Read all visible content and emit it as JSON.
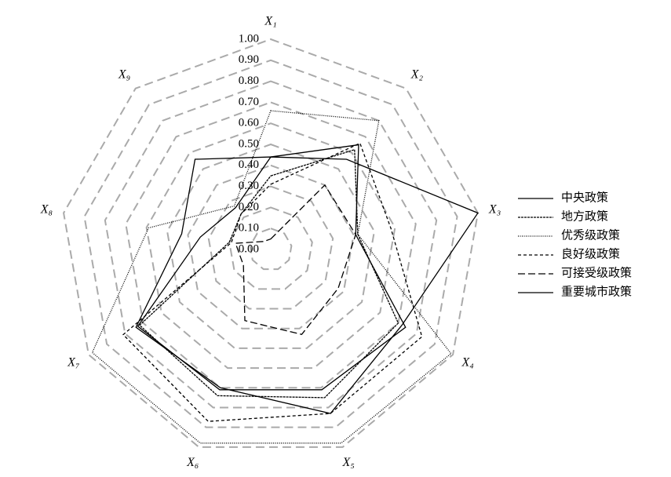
{
  "chart_data": {
    "type": "radar",
    "categories": [
      "X₁",
      "X₂",
      "X₃",
      "X₄",
      "X₅",
      "X₆",
      "X₇",
      "X₈",
      "X₉"
    ],
    "ylim": [
      0,
      1
    ],
    "yticks": [
      {
        "value": 0,
        "label": "0.00"
      },
      {
        "value": 0.1,
        "label": "0.10"
      },
      {
        "value": 0.2,
        "label": "0.20"
      },
      {
        "value": 0.3,
        "label": "0.30"
      },
      {
        "value": 0.4,
        "label": "0.40"
      },
      {
        "value": 0.5,
        "label": "0.50"
      },
      {
        "value": 0.6,
        "label": "0.60"
      },
      {
        "value": 0.7,
        "label": "0.70"
      },
      {
        "value": 0.8,
        "label": "0.80"
      },
      {
        "value": 0.9,
        "label": "0.90"
      },
      {
        "value": 1,
        "label": "1.00"
      }
    ],
    "grid": true,
    "legend": "right",
    "series": [
      {
        "name": "中央政策",
        "color": "#000000",
        "dash": "none",
        "values": [
          0.44,
          0.65,
          0.41,
          0.74,
          0.71,
          0.71,
          0.73,
          0.34,
          0.26
        ]
      },
      {
        "name": "地方政策",
        "color": "#000000",
        "dash": "3,1",
        "values": [
          0.35,
          0.62,
          0.42,
          0.7,
          0.75,
          0.74,
          0.72,
          0.2,
          0.22
        ]
      },
      {
        "name": "优秀级政策",
        "color": "#000000",
        "dash": "1,1.5",
        "values": [
          0.66,
          0.8,
          0.42,
          0.99,
          0.98,
          0.98,
          0.98,
          0.59,
          0.27
        ]
      },
      {
        "name": "良好级政策",
        "color": "#000000",
        "dash": "4,3",
        "values": [
          0.31,
          0.66,
          0.58,
          0.83,
          0.83,
          0.87,
          0.81,
          0.19,
          0.22
        ]
      },
      {
        "name": "可接受级政策",
        "color": "#000000",
        "dash": "9,4",
        "values": [
          0.05,
          0.4,
          0.41,
          0.37,
          0.43,
          0.36,
          0.15,
          0.17,
          0.05
        ]
      },
      {
        "name": "重要城市政策",
        "color": "#000000",
        "dash": "none",
        "values": [
          0.44,
          0.56,
          1.0,
          0.72,
          0.83,
          0.7,
          0.74,
          0.43,
          0.56
        ]
      }
    ]
  }
}
